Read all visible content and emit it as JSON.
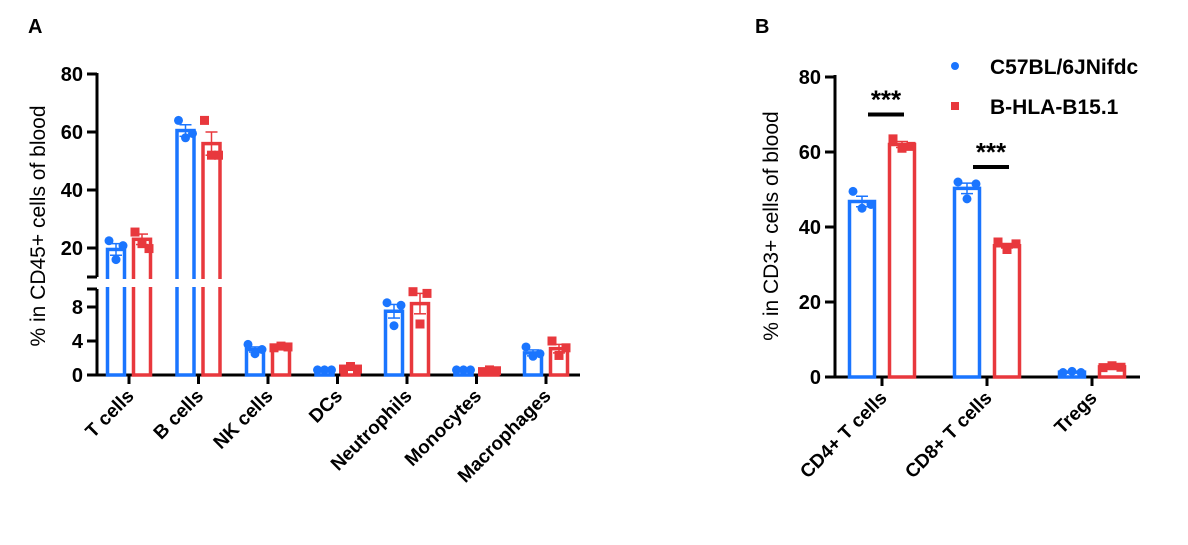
{
  "colors": {
    "C57BL/6JNifdc": "#1a75ff",
    "B-HLA-B15.1": "#e8383d"
  },
  "legend": [
    {
      "name": "C57BL/6JNifdc",
      "marker": "circle"
    },
    {
      "name": "B-HLA-B15.1",
      "marker": "square"
    }
  ],
  "chart_data": [
    {
      "panel": "A",
      "type": "bar",
      "ylabel": "% in CD45+ cells of blood",
      "ylim": [
        0,
        80
      ],
      "y_axis_break": [
        10,
        10
      ],
      "yticks_lower": [
        0,
        4,
        8
      ],
      "yticks_upper": [
        20,
        40,
        60,
        80
      ],
      "categories": [
        "T cells",
        "B cells",
        "NK cells",
        "DCs",
        "Neutrophils",
        "Monocytes",
        "Macrophages"
      ],
      "series": [
        {
          "name": "C57BL/6JNifdc",
          "values": [
            19.5,
            60.5,
            3.0,
            0.6,
            7.5,
            0.6,
            2.6
          ],
          "sem": [
            2.0,
            2.0,
            0.3,
            0.05,
            0.8,
            0.05,
            0.35
          ],
          "points": [
            [
              22.5,
              16,
              20.8
            ],
            [
              64,
              58,
              59.5
            ],
            [
              3.6,
              2.5,
              3.0
            ],
            [
              0.6,
              0.6,
              0.6
            ],
            [
              8.5,
              5.8,
              8.2
            ],
            [
              0.6,
              0.6,
              0.6
            ],
            [
              3.3,
              2.2,
              2.5
            ]
          ]
        },
        {
          "name": "B-HLA-B15.1",
          "values": [
            23.0,
            56.0,
            3.3,
            0.8,
            8.4,
            0.5,
            3.1
          ],
          "sem": [
            1.8,
            4.0,
            0.1,
            0.1,
            1.2,
            0.05,
            0.5
          ],
          "points": [
            [
              25.5,
              21.5,
              19.8
            ],
            [
              64,
              52,
              52
            ],
            [
              3.2,
              3.4,
              3.3
            ],
            [
              0.7,
              1.0,
              0.7
            ],
            [
              9.8,
              6.0,
              9.6
            ],
            [
              0.4,
              0.6,
              0.5
            ],
            [
              4.0,
              2.3,
              3.2
            ]
          ]
        }
      ]
    },
    {
      "panel": "B",
      "type": "bar",
      "ylabel": "% in CD3+ cells of blood",
      "ylim": [
        0,
        80
      ],
      "yticks": [
        0,
        20,
        40,
        60,
        80
      ],
      "categories": [
        "CD4+ T cells",
        "CD8+ T cells",
        "Tregs"
      ],
      "series": [
        {
          "name": "C57BL/6JNifdc",
          "values": [
            46.8,
            50.3,
            1.3
          ],
          "sem": [
            1.4,
            1.4,
            0.15
          ],
          "points": [
            [
              49.5,
              45,
              46
            ],
            [
              52,
              47.5,
              51.5
            ],
            [
              1.2,
              1.5,
              1.2
            ]
          ]
        },
        {
          "name": "B-HLA-B15.1",
          "values": [
            62.0,
            35.0,
            2.7
          ],
          "sem": [
            0.8,
            0.6,
            0.2
          ],
          "points": [
            [
              63.5,
              61,
              61.5
            ],
            [
              36,
              34,
              35.5
            ],
            [
              2.5,
              3.0,
              2.6
            ]
          ]
        }
      ],
      "significance": [
        {
          "category": "CD4+ T cells",
          "label": "***",
          "bar_value": 70
        },
        {
          "category": "CD8+ T cells",
          "label": "***",
          "bar_value": 56
        }
      ]
    }
  ]
}
